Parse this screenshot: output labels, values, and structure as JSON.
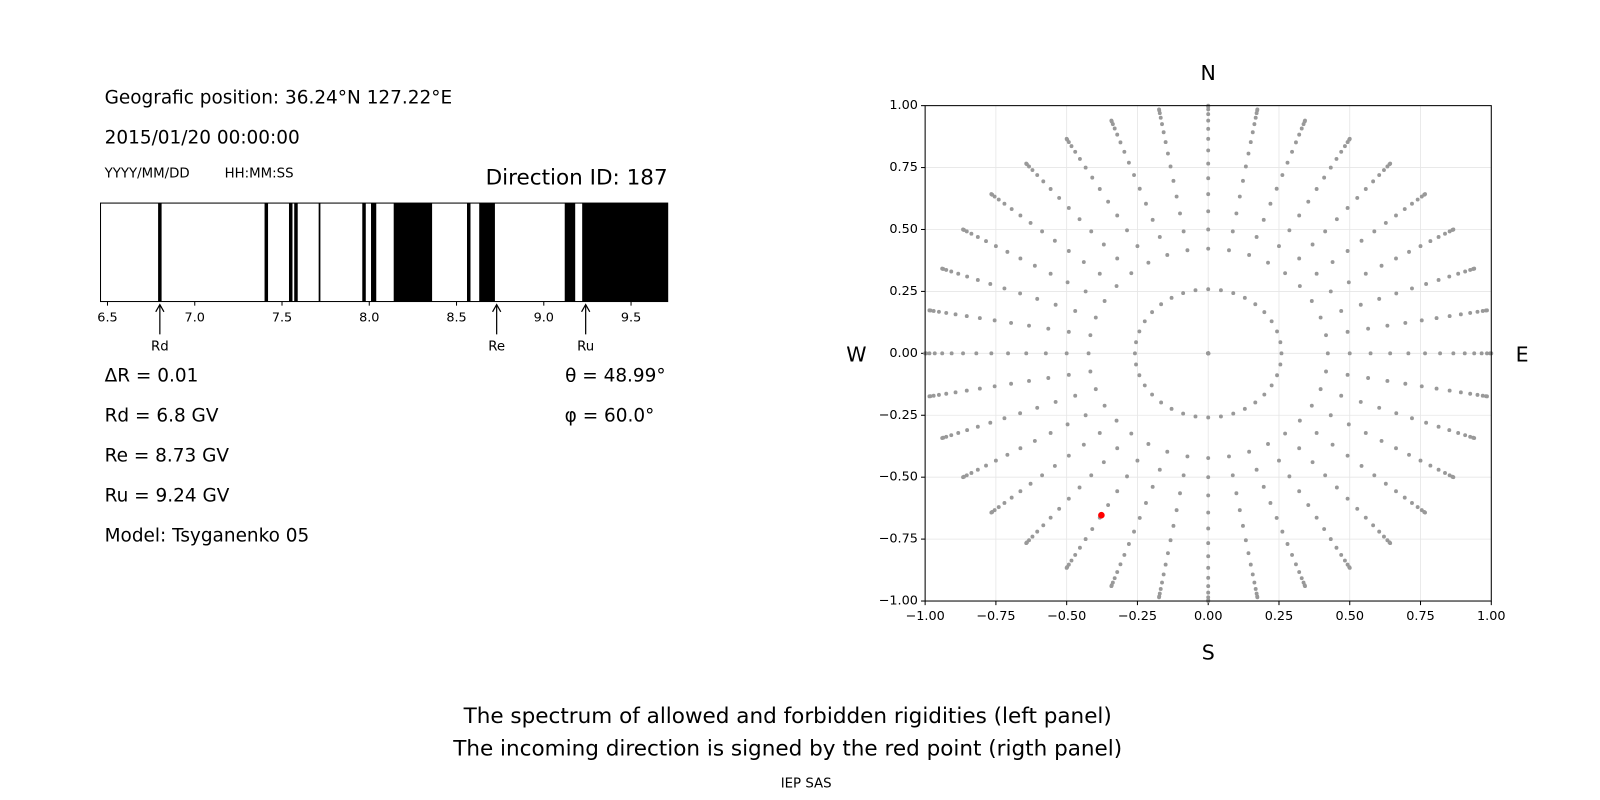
{
  "header": {
    "position": "Geografic position: 36.24°N 127.22°E",
    "datetime": "2015/01/20 00:00:00",
    "date_format": "YYYY/MM/DD",
    "time_format": "HH:MM:SS",
    "direction_id": "Direction ID: 187"
  },
  "chart_data": [
    {
      "type": "spectrum",
      "xlim": [
        6.46,
        9.71
      ],
      "xticks": [
        6.5,
        {
          "value": 7,
          "label": "7.0"
        },
        7.5,
        {
          "value": 8,
          "label": "8.0"
        },
        8.5,
        {
          "value": 9,
          "label": "9.0"
        },
        9.5
      ],
      "color": "#000000",
      "forbidden": [
        [
          6.79,
          6.81
        ],
        [
          7.4,
          7.42
        ],
        [
          7.54,
          7.56
        ],
        [
          7.57,
          7.59
        ],
        [
          7.71,
          7.72
        ],
        [
          7.96,
          7.98
        ],
        [
          8.01,
          8.04
        ],
        [
          8.14,
          8.36
        ],
        [
          8.56,
          8.58
        ],
        [
          8.63,
          8.72
        ],
        [
          9.12,
          9.18
        ],
        [
          9.22,
          9.71
        ]
      ],
      "markers": [
        {
          "name": "Rd",
          "value": 6.8
        },
        {
          "name": "Re",
          "value": 8.73
        },
        {
          "name": "Ru",
          "value": 9.24
        }
      ]
    },
    {
      "type": "sky-map",
      "xlim": [
        -1,
        1
      ],
      "ylim": [
        -1,
        1
      ],
      "xticks": [
        {
          "value": -1,
          "label": "−1.00"
        },
        {
          "value": -0.75,
          "label": "−0.75"
        },
        {
          "value": -0.5,
          "label": "−0.50"
        },
        {
          "value": -0.25,
          "label": "−0.25"
        },
        {
          "value": 0,
          "label": "0.00"
        },
        {
          "value": 0.25,
          "label": "0.25"
        },
        {
          "value": 0.5,
          "label": "0.50"
        },
        {
          "value": 0.75,
          "label": "0.75"
        },
        {
          "value": 1,
          "label": "1.00"
        }
      ],
      "yticks": [
        {
          "value": -1,
          "label": "−1.00"
        },
        {
          "value": -0.75,
          "label": "−0.75"
        },
        {
          "value": -0.5,
          "label": "−0.50"
        },
        {
          "value": -0.25,
          "label": "−0.25"
        },
        {
          "value": 0,
          "label": "0.00"
        },
        {
          "value": 0.25,
          "label": "0.25"
        },
        {
          "value": 0.5,
          "label": "0.50"
        },
        {
          "value": 0.75,
          "label": "0.75"
        },
        {
          "value": 1,
          "label": "1.00"
        }
      ],
      "grid": true,
      "labels": {
        "top": "N",
        "bottom": "S",
        "left": "W",
        "right": "E"
      },
      "zenith": [
        0,
        15,
        25,
        30,
        35,
        40,
        45,
        50,
        55,
        60,
        65,
        70,
        75,
        80,
        85,
        90
      ],
      "azimuth": [
        0,
        10,
        20,
        30,
        40,
        50,
        60,
        70,
        80,
        90,
        100,
        110,
        120,
        130,
        140,
        150,
        160,
        170,
        180,
        190,
        200,
        210,
        220,
        230,
        240,
        250,
        260,
        270,
        280,
        290,
        300,
        310,
        320,
        330,
        340,
        350
      ],
      "color": "#999999",
      "selected": {
        "zenith": 48.99,
        "azimuth": 60,
        "color": "#ff0000"
      }
    }
  ],
  "results": {
    "delta_r": "ΔR = 0.01",
    "rd": "Rd = 6.8 GV",
    "re": "Re = 8.73 GV",
    "ru": "Ru = 9.24 GV",
    "model": "Model: Tsyganenko 05",
    "theta": "θ = 48.99°",
    "phi": "φ = 60.0°"
  },
  "caption": [
    "The spectrum of allowed and forbidden rigidities (left panel)",
    "The incoming direction is signed by the red point (rigth panel)"
  ],
  "credit": "IEP SAS"
}
